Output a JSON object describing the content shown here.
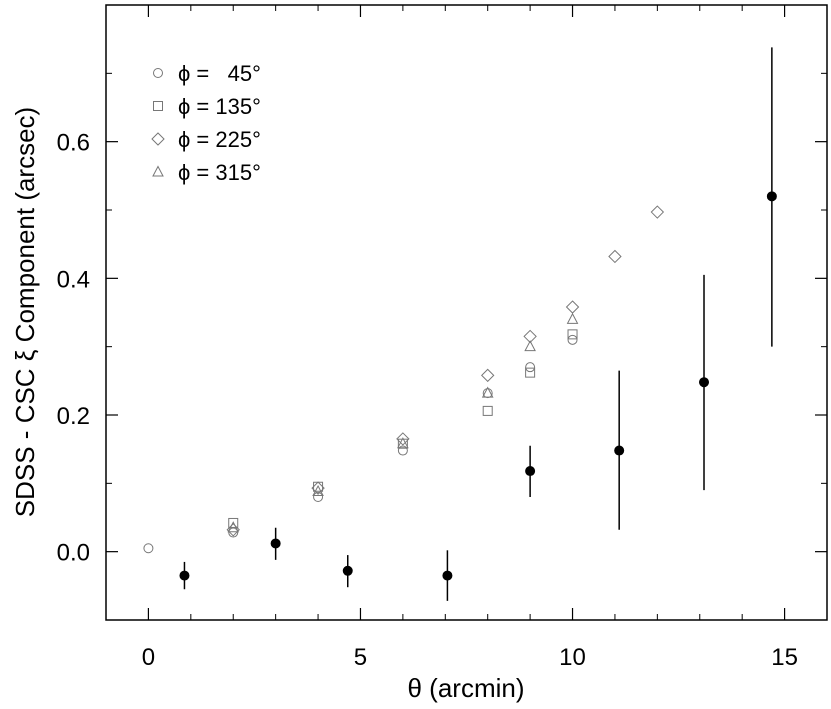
{
  "chart_data": {
    "type": "scatter",
    "title": "",
    "xlabel": "θ (arcmin)",
    "ylabel": "SDSS - CSC ξ Component (arcsec)",
    "xlim": [
      -1,
      16
    ],
    "ylim": [
      -0.1,
      0.8
    ],
    "xticks": [
      0,
      5,
      10,
      15
    ],
    "xtick_labels": [
      "0",
      "5",
      "10",
      "15"
    ],
    "yticks": [
      0.0,
      0.2,
      0.4,
      0.6
    ],
    "ytick_labels": [
      "0.0",
      "0.2",
      "0.4",
      "0.6"
    ],
    "grid": false,
    "legend_position": "top-left",
    "legend": [
      {
        "marker": "circle",
        "label": "ϕ =   45°"
      },
      {
        "marker": "square",
        "label": "ϕ = 135°"
      },
      {
        "marker": "diamond",
        "label": "ϕ = 225°"
      },
      {
        "marker": "triangle",
        "label": "ϕ = 315°"
      }
    ],
    "series": [
      {
        "name": "ϕ =   45°",
        "marker": "circle",
        "x": [
          0,
          2,
          4,
          6,
          8,
          9,
          10
        ],
        "y": [
          0.005,
          0.028,
          0.08,
          0.148,
          0.232,
          0.27,
          0.31
        ]
      },
      {
        "name": "ϕ = 135°",
        "marker": "square",
        "x": [
          2,
          4,
          6,
          8,
          9,
          10
        ],
        "y": [
          0.042,
          0.095,
          0.158,
          0.206,
          0.262,
          0.318
        ]
      },
      {
        "name": "ϕ = 225°",
        "marker": "diamond",
        "x": [
          2,
          4,
          6,
          8,
          9,
          10,
          11,
          12
        ],
        "y": [
          0.032,
          0.093,
          0.165,
          0.258,
          0.315,
          0.358,
          0.432,
          0.497
        ]
      },
      {
        "name": "ϕ = 315°",
        "marker": "triangle",
        "x": [
          2,
          4,
          6,
          8,
          9,
          10
        ],
        "y": [
          0.035,
          0.088,
          0.158,
          0.232,
          0.3,
          0.34
        ]
      },
      {
        "marker": "filled-circle",
        "x": [
          0.85,
          3.0,
          4.7,
          7.05,
          9.0,
          11.1,
          13.1,
          14.7
        ],
        "y": [
          -0.035,
          0.012,
          -0.028,
          -0.035,
          0.118,
          0.148,
          0.248,
          0.52
        ],
        "yerr_low": [
          -0.055,
          -0.012,
          -0.052,
          -0.072,
          0.08,
          0.032,
          0.09,
          0.3
        ],
        "yerr_high": [
          -0.015,
          0.035,
          -0.005,
          0.002,
          0.155,
          0.265,
          0.405,
          0.738
        ]
      }
    ]
  }
}
